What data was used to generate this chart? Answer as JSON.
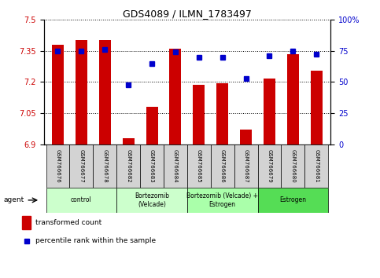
{
  "title": "GDS4089 / ILMN_1783497",
  "samples": [
    "GSM766676",
    "GSM766677",
    "GSM766678",
    "GSM766682",
    "GSM766683",
    "GSM766684",
    "GSM766685",
    "GSM766686",
    "GSM766687",
    "GSM766679",
    "GSM766680",
    "GSM766681"
  ],
  "transformed_count": [
    7.38,
    7.4,
    7.4,
    6.93,
    7.08,
    7.36,
    7.185,
    7.195,
    6.97,
    7.215,
    7.335,
    7.255
  ],
  "percentile_rank": [
    75,
    75,
    76,
    48,
    65,
    74,
    70,
    70,
    53,
    71,
    75,
    72
  ],
  "ylim_left": [
    6.9,
    7.5
  ],
  "ylim_right": [
    0,
    100
  ],
  "yticks_left": [
    6.9,
    7.05,
    7.2,
    7.35,
    7.5
  ],
  "yticks_right": [
    0,
    25,
    50,
    75,
    100
  ],
  "bar_color": "#cc0000",
  "dot_color": "#0000cc",
  "bar_bottom": 6.9,
  "groups": [
    {
      "label": "control",
      "start": 0,
      "end": 3,
      "color": "#ccffcc"
    },
    {
      "label": "Bortezomib\n(Velcade)",
      "start": 3,
      "end": 6,
      "color": "#ccffcc"
    },
    {
      "label": "Bortezomib (Velcade) +\nEstrogen",
      "start": 6,
      "end": 9,
      "color": "#aaffaa"
    },
    {
      "label": "Estrogen",
      "start": 9,
      "end": 12,
      "color": "#55dd55"
    }
  ],
  "agent_label": "agent",
  "legend_bar_label": "transformed count",
  "legend_dot_label": "percentile rank within the sample",
  "grid_color": "#000000",
  "tick_label_color_left": "#cc0000",
  "tick_label_color_right": "#0000cc",
  "bar_width": 0.5,
  "sample_box_color": "#d3d3d3"
}
